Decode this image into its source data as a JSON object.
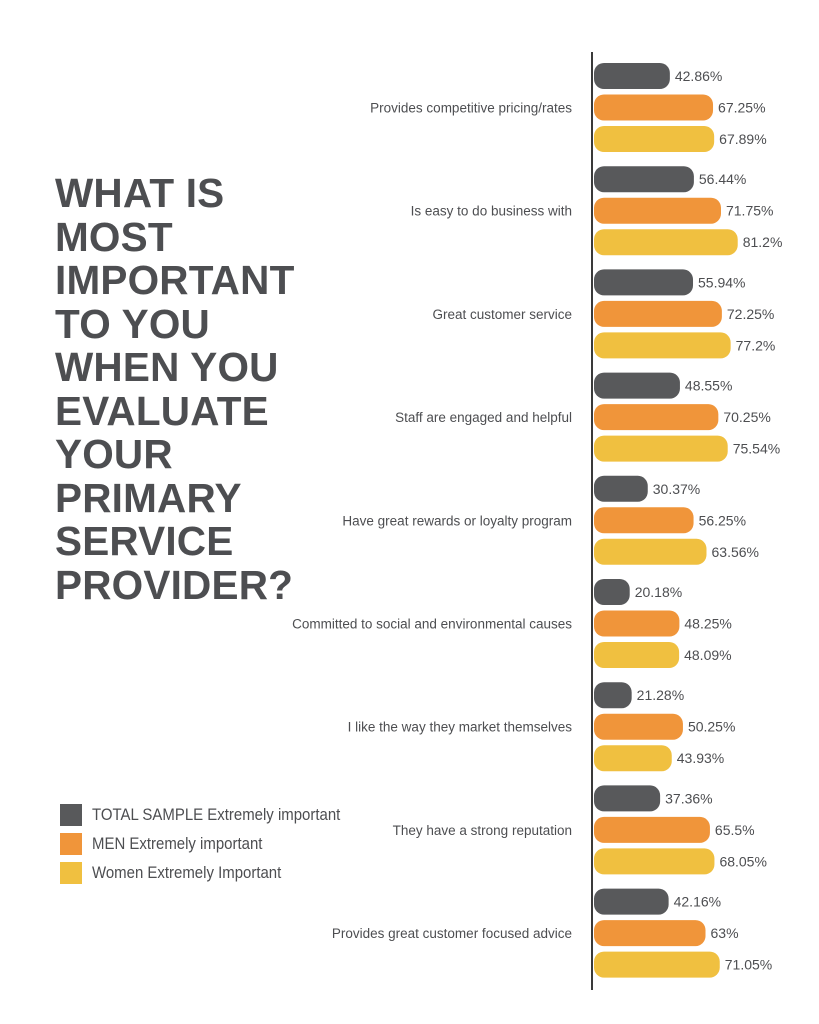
{
  "headline": {
    "lines": [
      "WHAT IS",
      "MOST",
      "IMPORTANT",
      "TO YOU",
      "WHEN YOU",
      "EVALUATE",
      "YOUR",
      "PRIMARY",
      "SERVICE",
      "PROVIDER?"
    ]
  },
  "colors": {
    "total": "#58595b",
    "men": "#f0953a",
    "women": "#f0c040",
    "text": "#4d4e51",
    "axis": "#3a3a3a"
  },
  "chart_data": {
    "type": "bar",
    "orientation": "horizontal",
    "categories": [
      "Provides competitive pricing/rates",
      "Is easy to do business with",
      "Great customer service",
      "Staff are engaged and helpful",
      "Have great rewards or loyalty program",
      "Committed to social and environmental causes",
      "I like the way they market themselves",
      "They have a strong reputation",
      "Provides great customer focused advice"
    ],
    "series": [
      {
        "name": "TOTAL SAMPLE Extremely important",
        "color": "#58595b",
        "values": [
          42.86,
          56.44,
          55.94,
          48.55,
          30.37,
          20.18,
          21.28,
          37.36,
          42.16
        ],
        "labels": [
          "42.86%",
          "56.44%",
          "55.94%",
          "48.55%",
          "30.37%",
          "20.18%",
          "21.28%",
          "37.36%",
          "42.16%"
        ]
      },
      {
        "name": "MEN Extremely important",
        "color": "#f0953a",
        "values": [
          67.25,
          71.75,
          72.25,
          70.25,
          56.25,
          48.25,
          50.25,
          65.5,
          63
        ],
        "labels": [
          "67.25%",
          "71.75%",
          "72.25%",
          "70.25%",
          "56.25%",
          "48.25%",
          "50.25%",
          "65.5%",
          "63%"
        ]
      },
      {
        "name": "Women Extremely Important",
        "color": "#f0c040",
        "values": [
          67.89,
          81.2,
          77.2,
          75.54,
          63.56,
          48.09,
          43.93,
          68.05,
          71.05
        ],
        "labels": [
          "67.89%",
          "81.2%",
          "77.2%",
          "75.54%",
          "63.56%",
          "48.09%",
          "43.93%",
          "68.05%",
          "71.05%"
        ]
      }
    ],
    "xlim": [
      0,
      100
    ],
    "legend": "bottom-left",
    "grid": false
  }
}
